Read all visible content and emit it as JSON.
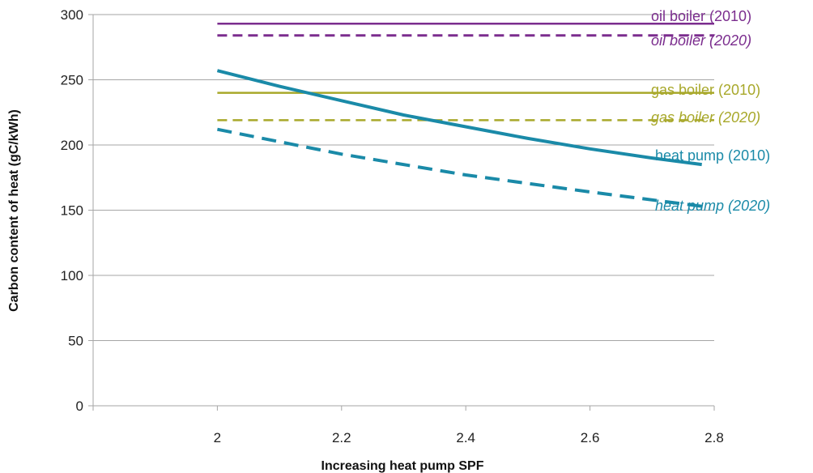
{
  "chart_data": {
    "type": "line",
    "xlabel": "Increasing heat pump SPF",
    "ylabel": "Carbon content of heat (gC/kWh)",
    "xlim": [
      1.8,
      2.8
    ],
    "ylim": [
      0,
      300
    ],
    "xticks": [
      2,
      2.2,
      2.4,
      2.6,
      2.8
    ],
    "yticks": [
      0,
      50,
      100,
      150,
      200,
      250,
      300
    ],
    "grid": "horizontal",
    "legend": "direct labels at right",
    "series": [
      {
        "name": "oil boiler (2010)",
        "color": "#7b2d8e",
        "dash": "solid",
        "width": 2.5,
        "x": [
          2,
          2.8
        ],
        "y": [
          293,
          293
        ]
      },
      {
        "name": "oil boiler (2020)",
        "color": "#7b2d8e",
        "dash": "dashed",
        "width": 3,
        "x": [
          2,
          2.8
        ],
        "y": [
          284,
          284
        ]
      },
      {
        "name": "gas boiler (2010)",
        "color": "#a8a82a",
        "dash": "solid",
        "width": 2.5,
        "x": [
          2,
          2.8
        ],
        "y": [
          240,
          240
        ]
      },
      {
        "name": "gas boiler (2020)",
        "color": "#a8a82a",
        "dash": "dashed",
        "width": 2.5,
        "x": [
          2,
          2.8
        ],
        "y": [
          219,
          219
        ]
      },
      {
        "name": "heat pump (2010)",
        "color": "#1a8aa8",
        "dash": "solid",
        "width": 4,
        "x": [
          2,
          2.1,
          2.2,
          2.3,
          2.4,
          2.5,
          2.6,
          2.7,
          2.78
        ],
        "y": [
          257,
          245,
          234,
          223,
          214,
          205,
          197,
          190,
          185
        ]
      },
      {
        "name": "heat pump (2020)",
        "color": "#1a8aa8",
        "dash": "dashed",
        "width": 4,
        "x": [
          2,
          2.2,
          2.4,
          2.6,
          2.78
        ],
        "y": [
          212,
          193,
          177,
          164,
          153
        ]
      }
    ]
  },
  "labels": {
    "oil_2010": "oil boiler (2010)",
    "oil_2020": "oil boiler (2020)",
    "gas_2010": "gas boiler (2010)",
    "gas_2020": "gas boiler (2020)",
    "hp_2010": "heat pump (2010)",
    "hp_2020": "heat pump (2020)"
  }
}
